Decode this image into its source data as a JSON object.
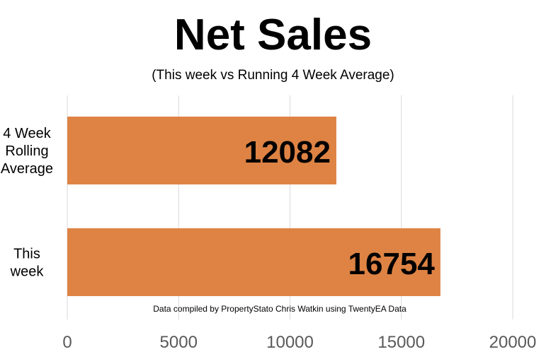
{
  "chart_data": {
    "type": "bar",
    "orientation": "horizontal",
    "title": "Net Sales",
    "subtitle": "(This week vs Running 4 Week Average)",
    "categories": [
      "4 Week Rolling Average",
      "This week"
    ],
    "category_lines": [
      [
        "4 Week",
        "Rolling",
        "Average"
      ],
      [
        "This",
        "week"
      ]
    ],
    "values": [
      12082,
      16754
    ],
    "data_labels": [
      "12082",
      "16754"
    ],
    "xlim": [
      0,
      20000
    ],
    "x_ticks": [
      0,
      5000,
      10000,
      15000,
      20000
    ],
    "x_tick_labels": [
      "0",
      "5000",
      "10000",
      "15000",
      "20000"
    ],
    "xlabel": "",
    "ylabel": "",
    "grid": "vertical",
    "legend": "none",
    "bar_color": "#DE8344",
    "note": "Data compiled by PropertyStato Chris Watkin using TwentyEA Data"
  }
}
